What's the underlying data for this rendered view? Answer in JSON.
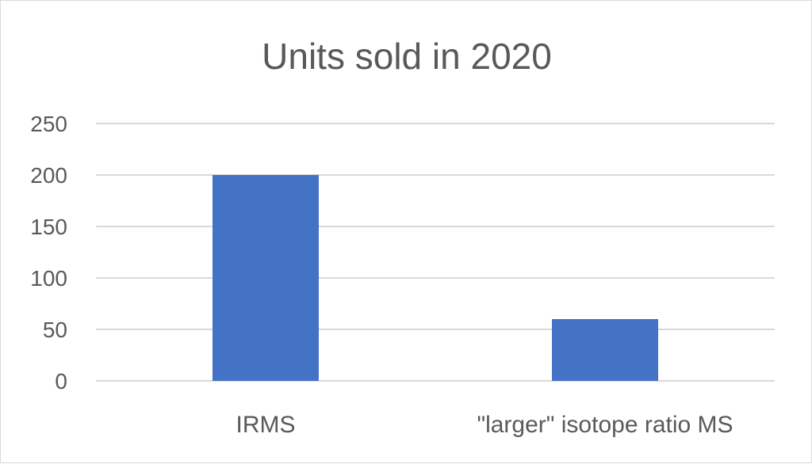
{
  "chart_data": {
    "type": "bar",
    "title": "Units sold in 2020",
    "xlabel": "",
    "ylabel": "",
    "categories": [
      "IRMS",
      "\"larger\" isotope ratio MS"
    ],
    "values": [
      200,
      60
    ],
    "ylim": [
      0,
      250
    ],
    "yticks": [
      0,
      50,
      100,
      150,
      200,
      250
    ],
    "grid": true,
    "legend": "none",
    "bar_color": "#4472C4",
    "grid_color": "#d9d9d9",
    "text_color": "#595959"
  }
}
